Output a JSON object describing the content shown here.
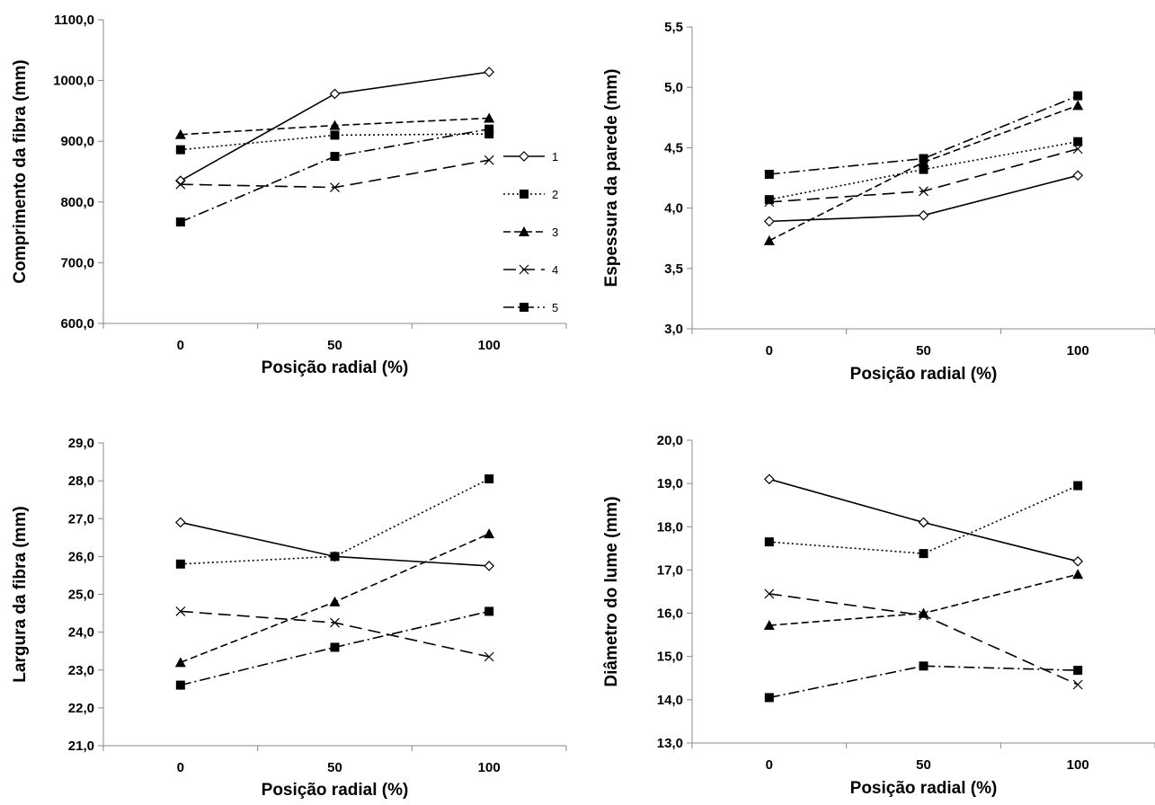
{
  "chart_data": [
    {
      "type": "line",
      "x": [
        "0",
        "50",
        "100"
      ],
      "xlabel": "Posição radial (%)",
      "ylabel": "Comprimento da fibra  (mm)",
      "ylim": [
        600,
        1100
      ],
      "yticks": [
        "600,0",
        "700,0",
        "800,0",
        "900,0",
        "1000,0",
        "1100,0"
      ],
      "legend": "right",
      "series": [
        {
          "name": "1",
          "values": [
            835,
            978,
            1014
          ]
        },
        {
          "name": "2",
          "values": [
            886,
            910,
            912
          ]
        },
        {
          "name": "3",
          "values": [
            911,
            926,
            938
          ]
        },
        {
          "name": "4",
          "values": [
            829,
            824,
            869
          ]
        },
        {
          "name": "5",
          "values": [
            767,
            875,
            920
          ]
        }
      ]
    },
    {
      "type": "line",
      "x": [
        "0",
        "50",
        "100"
      ],
      "xlabel": "Posição radial (%)",
      "ylabel": "Espessura da parede  (mm)",
      "ylim": [
        3.0,
        5.5
      ],
      "yticks": [
        "3,0",
        "3,5",
        "4,0",
        "4,5",
        "5,0",
        "5,5"
      ],
      "series": [
        {
          "name": "1",
          "values": [
            3.89,
            3.94,
            4.27
          ]
        },
        {
          "name": "2",
          "values": [
            4.07,
            4.32,
            4.55
          ]
        },
        {
          "name": "3",
          "values": [
            3.73,
            4.38,
            4.85
          ]
        },
        {
          "name": "4",
          "values": [
            4.05,
            4.14,
            4.49
          ]
        },
        {
          "name": "5",
          "values": [
            4.28,
            4.41,
            4.93
          ]
        }
      ]
    },
    {
      "type": "line",
      "x": [
        "0",
        "50",
        "100"
      ],
      "xlabel": "Posição radial (%)",
      "ylabel": "Largura da fibra  (mm)",
      "ylim": [
        21,
        29
      ],
      "yticks": [
        "21,0",
        "22,0",
        "23,0",
        "24,0",
        "25,0",
        "26,0",
        "27,0",
        "28,0",
        "29,0"
      ],
      "series": [
        {
          "name": "1",
          "values": [
            26.9,
            26.0,
            25.75
          ]
        },
        {
          "name": "2",
          "values": [
            25.8,
            26.0,
            28.05
          ]
        },
        {
          "name": "3",
          "values": [
            23.2,
            24.8,
            26.6
          ]
        },
        {
          "name": "4",
          "values": [
            24.55,
            24.25,
            23.35
          ]
        },
        {
          "name": "5",
          "values": [
            22.6,
            23.6,
            24.55
          ]
        }
      ]
    },
    {
      "type": "line",
      "x": [
        "0",
        "50",
        "100"
      ],
      "xlabel": "Posição radial (%)",
      "ylabel": "Diâmetro do lume  (mm)",
      "ylim": [
        13,
        20
      ],
      "yticks": [
        "13,0",
        "14,0",
        "15,0",
        "16,0",
        "17,0",
        "18,0",
        "19,0",
        "20,0"
      ],
      "series": [
        {
          "name": "1",
          "values": [
            19.1,
            18.1,
            17.2
          ]
        },
        {
          "name": "2",
          "values": [
            17.65,
            17.38,
            18.95
          ]
        },
        {
          "name": "3",
          "values": [
            15.72,
            16.0,
            16.9
          ]
        },
        {
          "name": "4",
          "values": [
            16.45,
            15.95,
            14.35
          ]
        },
        {
          "name": "5",
          "values": [
            14.05,
            14.78,
            14.68
          ]
        }
      ]
    }
  ]
}
